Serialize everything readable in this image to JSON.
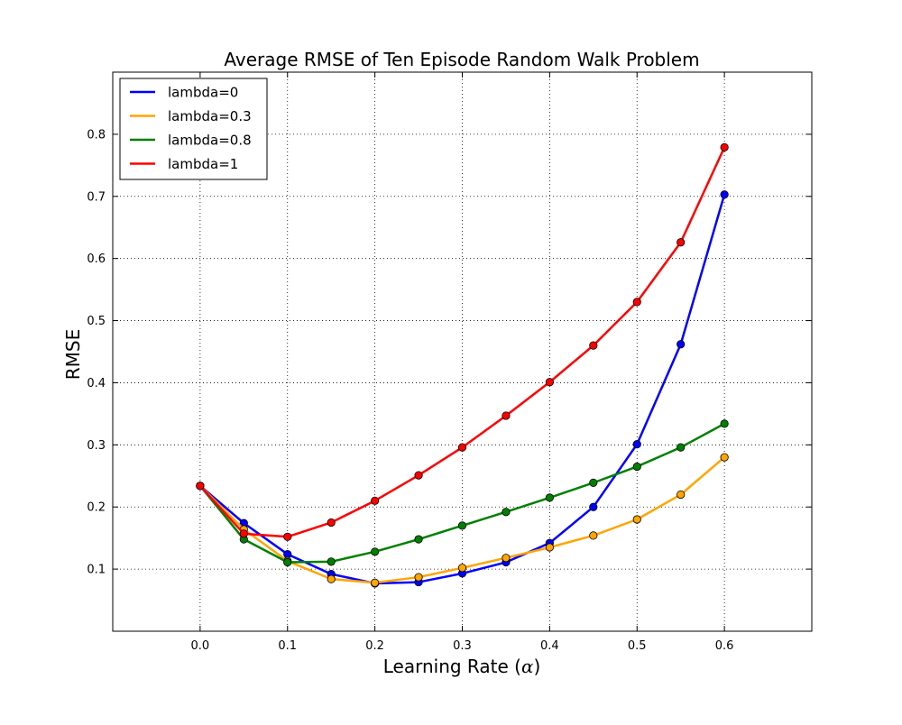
{
  "chart_data": {
    "type": "line",
    "title": "Average RMSE of Ten Episode Random Walk Problem",
    "xlabel": "Learning Rate (",
    "xlabel_symbol": "α",
    "xlabel_end": ")",
    "ylabel": "RMSE",
    "xlim": [
      -0.1,
      0.7
    ],
    "ylim": [
      0.0,
      0.9
    ],
    "xticks": [
      0.0,
      0.1,
      0.2,
      0.3,
      0.4,
      0.5,
      0.6
    ],
    "xtick_labels": [
      "0.0",
      "0.1",
      "0.2",
      "0.3",
      "0.4",
      "0.5",
      "0.6"
    ],
    "yticks": [
      0.1,
      0.2,
      0.3,
      0.4,
      0.5,
      0.6,
      0.7,
      0.8
    ],
    "ytick_labels": [
      "0.1",
      "0.2",
      "0.3",
      "0.4",
      "0.5",
      "0.6",
      "0.7",
      "0.8"
    ],
    "grid": true,
    "legend_position": "top-left",
    "x": [
      0.0,
      0.05,
      0.1,
      0.15,
      0.2,
      0.25,
      0.3,
      0.35,
      0.4,
      0.45,
      0.5,
      0.55,
      0.6
    ],
    "series": [
      {
        "name": "lambda=0",
        "color": "#0000ff",
        "values": [
          0.234,
          0.174,
          0.124,
          0.092,
          0.077,
          0.079,
          0.093,
          0.111,
          0.142,
          0.2,
          0.301,
          0.462,
          0.703
        ]
      },
      {
        "name": "lambda=0.3",
        "color": "#ffa500",
        "values": [
          0.234,
          0.164,
          0.113,
          0.084,
          0.078,
          0.087,
          0.102,
          0.118,
          0.135,
          0.154,
          0.18,
          0.22,
          0.28
        ]
      },
      {
        "name": "lambda=0.8",
        "color": "#008000",
        "values": [
          0.234,
          0.148,
          0.111,
          0.112,
          0.128,
          0.148,
          0.17,
          0.192,
          0.215,
          0.239,
          0.265,
          0.296,
          0.334
        ]
      },
      {
        "name": "lambda=1",
        "color": "#ff0000",
        "values": [
          0.234,
          0.157,
          0.152,
          0.175,
          0.21,
          0.251,
          0.296,
          0.347,
          0.401,
          0.46,
          0.53,
          0.626,
          0.779
        ]
      }
    ]
  }
}
